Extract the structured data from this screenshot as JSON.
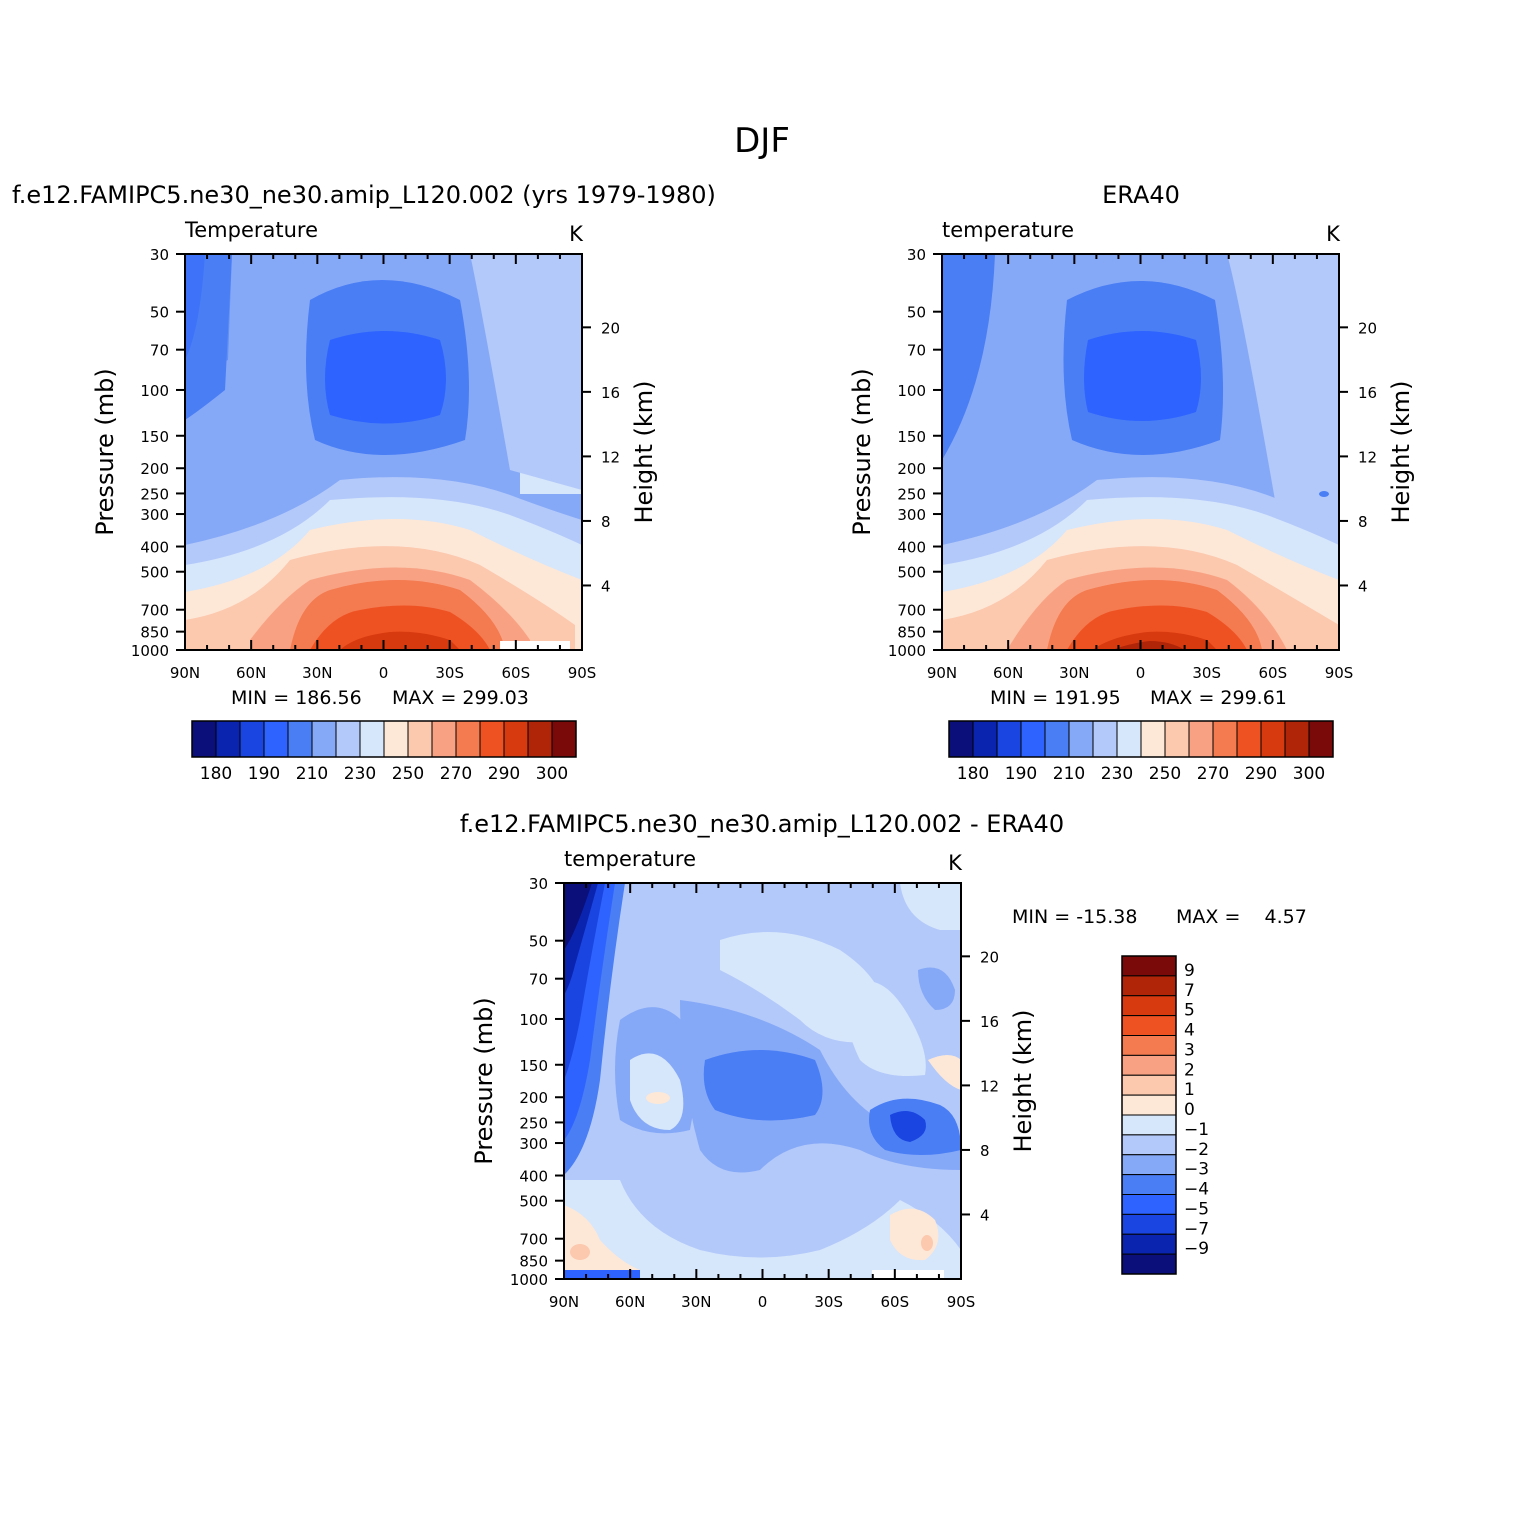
{
  "figure_title": "DJF",
  "chart_data": [
    {
      "type": "heatmap",
      "panel": "model",
      "title": "f.e12.FAMIPC5.ne30_ne30.amip_L120.002 (yrs 1979-1980)",
      "variable": "Temperature",
      "units": "K",
      "xlabel": "",
      "ylabel": "Pressure (mb)",
      "ylabel_right": "Height (km)",
      "x_ticks": [
        "90N",
        "60N",
        "30N",
        "0",
        "30S",
        "60S",
        "90S"
      ],
      "y_ticks": [
        30,
        50,
        70,
        100,
        150,
        200,
        250,
        300,
        400,
        500,
        700,
        850,
        1000
      ],
      "height_ticks": [
        4,
        8,
        12,
        16,
        20
      ],
      "min_label": "MIN = 186.56",
      "max_label": "MAX = 299.03",
      "min": 186.56,
      "max": 299.03,
      "colorbar_labels": [
        "180",
        "190",
        "210",
        "230",
        "250",
        "270",
        "290",
        "300"
      ],
      "colorbar_colors": [
        "#0a0f7a",
        "#0b24b0",
        "#1a45e0",
        "#2e63ff",
        "#4a7ef5",
        "#86a9f7",
        "#b3c9fa",
        "#d6e6fb",
        "#fde8d8",
        "#fcc8ae",
        "#f8a283",
        "#f47a50",
        "#ef5222",
        "#d83a10",
        "#b02508",
        "#7a0a0a"
      ]
    },
    {
      "type": "heatmap",
      "panel": "obs",
      "title": "ERA40",
      "variable": "temperature",
      "units": "K",
      "xlabel": "",
      "ylabel": "Pressure (mb)",
      "ylabel_right": "Height (km)",
      "x_ticks": [
        "90N",
        "60N",
        "30N",
        "0",
        "30S",
        "60S",
        "90S"
      ],
      "y_ticks": [
        30,
        50,
        70,
        100,
        150,
        200,
        250,
        300,
        400,
        500,
        700,
        850,
        1000
      ],
      "height_ticks": [
        4,
        8,
        12,
        16,
        20
      ],
      "min_label": "MIN = 191.95",
      "max_label": "MAX = 299.61",
      "min": 191.95,
      "max": 299.61,
      "colorbar_labels": [
        "180",
        "190",
        "210",
        "230",
        "250",
        "270",
        "290",
        "300"
      ],
      "colorbar_colors": [
        "#0a0f7a",
        "#0b24b0",
        "#1a45e0",
        "#2e63ff",
        "#4a7ef5",
        "#86a9f7",
        "#b3c9fa",
        "#d6e6fb",
        "#fde8d8",
        "#fcc8ae",
        "#f8a283",
        "#f47a50",
        "#ef5222",
        "#d83a10",
        "#b02508",
        "#7a0a0a"
      ]
    },
    {
      "type": "heatmap",
      "panel": "diff",
      "title": "f.e12.FAMIPC5.ne30_ne30.amip_L120.002 - ERA40",
      "variable": "temperature",
      "units": "K",
      "xlabel": "",
      "ylabel": "Pressure (mb)",
      "ylabel_right": "Height (km)",
      "x_ticks": [
        "90N",
        "60N",
        "30N",
        "0",
        "30S",
        "60S",
        "90S"
      ],
      "y_ticks": [
        30,
        50,
        70,
        100,
        150,
        200,
        250,
        300,
        400,
        500,
        700,
        850,
        1000
      ],
      "height_ticks": [
        4,
        8,
        12,
        16,
        20
      ],
      "min_label": "MIN = -15.38",
      "max_label": "MAX =    4.57",
      "min": -15.38,
      "max": 4.57,
      "colorbar_labels": [
        "9",
        "7",
        "5",
        "4",
        "3",
        "2",
        "1",
        "0",
        "-1",
        "-2",
        "-3",
        "-4",
        "-5",
        "-7",
        "-9"
      ],
      "colorbar_colors": [
        "#7a0a0a",
        "#b02508",
        "#d83a10",
        "#ef5222",
        "#f47a50",
        "#f8a283",
        "#fcc8ae",
        "#fde8d8",
        "#d6e6fb",
        "#b3c9fa",
        "#86a9f7",
        "#4a7ef5",
        "#2e63ff",
        "#1a45e0",
        "#0b24b0",
        "#0a0f7a"
      ]
    }
  ]
}
